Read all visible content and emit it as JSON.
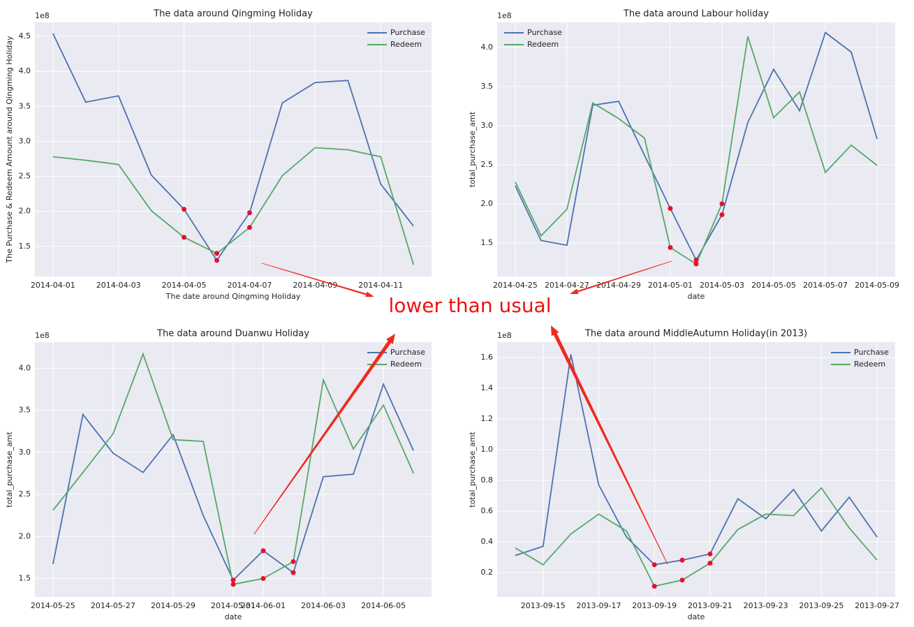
{
  "chart_data": [
    {
      "type": "line",
      "title": "The data around Qingming Holiday",
      "x_label": "The date around Qingming Holiday",
      "y_label": "The Purchase & Redeem Amount around Qingming Holiday",
      "offset": "1e8",
      "x": [
        "2014-04-01",
        "2014-04-02",
        "2014-04-03",
        "2014-04-04",
        "2014-04-05",
        "2014-04-06",
        "2014-04-07",
        "2014-04-08",
        "2014-04-09",
        "2014-04-10",
        "2014-04-11",
        "2014-04-12"
      ],
      "series": [
        {
          "name": "Purchase",
          "color": "#4c72b0",
          "values": [
            4.54,
            3.56,
            3.65,
            2.52,
            2.03,
            1.3,
            1.98,
            3.55,
            3.84,
            3.87,
            2.39,
            1.79
          ]
        },
        {
          "name": "Redeem",
          "color": "#55a868",
          "values": [
            2.78,
            2.73,
            2.67,
            2.01,
            1.63,
            1.4,
            1.77,
            2.51,
            2.91,
            2.88,
            2.78,
            1.24
          ]
        }
      ],
      "highlight": [
        "2014-04-05",
        "2014-04-06",
        "2014-04-07"
      ],
      "highlight_color": "#e8112d",
      "ylim": [
        1.07,
        4.7
      ],
      "yticks": [
        1.5,
        {
          "value": 2,
          "label": "2.0"
        },
        2.5,
        {
          "value": 3,
          "label": "3.0"
        },
        3.5,
        {
          "value": 4,
          "label": "4.0"
        },
        4.5
      ],
      "xticks": [
        "2014-04-01",
        "2014-04-03",
        "2014-04-05",
        "2014-04-07",
        "2014-04-09",
        "2014-04-11"
      ],
      "grid": true,
      "legend": "upper right"
    },
    {
      "type": "line",
      "title": "The data around Labour holiday",
      "x_label": "date",
      "y_label": "total_purchase_amt",
      "offset": "1e8",
      "x": [
        "2014-04-25",
        "2014-04-26",
        "2014-04-27",
        "2014-04-28",
        "2014-04-29",
        "2014-04-30",
        "2014-05-01",
        "2014-05-02",
        "2014-05-03",
        "2014-05-04",
        "2014-05-05",
        "2014-05-06",
        "2014-05-07",
        "2014-05-08",
        "2014-05-09"
      ],
      "series": [
        {
          "name": "Purchase",
          "color": "#4c72b0",
          "values": [
            2.23,
            1.53,
            1.47,
            3.26,
            3.31,
            2.62,
            1.94,
            1.28,
            1.86,
            3.04,
            3.72,
            3.19,
            4.19,
            3.94,
            2.83
          ]
        },
        {
          "name": "Redeem",
          "color": "#55a868",
          "values": [
            2.28,
            1.59,
            1.93,
            3.29,
            3.09,
            2.84,
            1.44,
            1.23,
            2.0,
            4.14,
            3.1,
            3.43,
            2.4,
            2.75,
            2.49
          ]
        }
      ],
      "highlight": [
        "2014-05-01",
        "2014-05-02",
        "2014-05-03"
      ],
      "highlight_color": "#e8112d",
      "ylim": [
        1.07,
        4.32
      ],
      "yticks": [
        1.5,
        {
          "value": 2,
          "label": "2.0"
        },
        2.5,
        {
          "value": 3,
          "label": "3.0"
        },
        3.5,
        {
          "value": 4,
          "label": "4.0"
        }
      ],
      "xticks": [
        "2014-04-25",
        "2014-04-27",
        "2014-04-29",
        "2014-05-01",
        "2014-05-03",
        "2014-05-05",
        "2014-05-07",
        "2014-05-09"
      ],
      "grid": true,
      "legend": "upper left"
    },
    {
      "type": "line",
      "title": "The data around Duanwu Holiday",
      "x_label": "date",
      "y_label": "total_purchase_amt",
      "offset": "1e8",
      "x": [
        "2014-05-25",
        "2014-05-26",
        "2014-05-27",
        "2014-05-28",
        "2014-05-29",
        "2014-05-30",
        "2014-05-31",
        "2014-06-01",
        "2014-06-02",
        "2014-06-03",
        "2014-06-04",
        "2014-06-05",
        "2014-06-06"
      ],
      "series": [
        {
          "name": "Purchase",
          "color": "#4c72b0",
          "values": [
            1.67,
            3.45,
            2.99,
            2.76,
            3.21,
            2.25,
            1.48,
            1.83,
            1.57,
            2.71,
            2.74,
            3.81,
            3.02
          ]
        },
        {
          "name": "Redeem",
          "color": "#55a868",
          "values": [
            2.31,
            2.76,
            3.22,
            4.17,
            3.15,
            3.13,
            1.43,
            1.5,
            1.7,
            3.86,
            3.04,
            3.56,
            2.75
          ]
        }
      ],
      "highlight": [
        "2014-05-31",
        "2014-06-01",
        "2014-06-02"
      ],
      "highlight_color": "#e8112d",
      "ylim": [
        1.28,
        4.31
      ],
      "yticks": [
        1.5,
        {
          "value": 2,
          "label": "2.0"
        },
        2.5,
        {
          "value": 3,
          "label": "3.0"
        },
        3.5,
        {
          "value": 4,
          "label": "4.0"
        }
      ],
      "xticks": [
        "2014-05-25",
        "2014-05-27",
        "2014-05-29",
        "2014-05-31",
        "2014-06-01",
        "2014-06-03",
        "2014-06-05"
      ],
      "grid": true,
      "legend": "upper right"
    },
    {
      "type": "line",
      "title": "The data around MiddleAutumn Holiday(in 2013)",
      "x_label": "date",
      "y_label": "total_purchase_amt",
      "offset": "1e8",
      "x": [
        "2013-09-14",
        "2013-09-15",
        "2013-09-16",
        "2013-09-17",
        "2013-09-18",
        "2013-09-19",
        "2013-09-20",
        "2013-09-21",
        "2013-09-22",
        "2013-09-23",
        "2013-09-24",
        "2013-09-25",
        "2013-09-26",
        "2013-09-27"
      ],
      "series": [
        {
          "name": "Purchase",
          "color": "#4c72b0",
          "values": [
            0.31,
            0.37,
            1.62,
            0.77,
            0.43,
            0.25,
            0.28,
            0.32,
            0.68,
            0.55,
            0.74,
            0.47,
            0.69,
            0.43
          ]
        },
        {
          "name": "Redeem",
          "color": "#55a868",
          "values": [
            0.36,
            0.25,
            0.45,
            0.58,
            0.47,
            0.11,
            0.15,
            0.26,
            0.48,
            0.58,
            0.57,
            0.75,
            0.49,
            0.28
          ]
        }
      ],
      "highlight": [
        "2013-09-19",
        "2013-09-20",
        "2013-09-21"
      ],
      "highlight_color": "#e8112d",
      "ylim": [
        0.04,
        1.7
      ],
      "yticks": [
        0.2,
        0.4,
        0.6,
        0.8,
        {
          "value": 1,
          "label": "1.0"
        },
        1.2,
        1.4,
        1.6
      ],
      "xticks": [
        "2013-09-15",
        "2013-09-17",
        "2013-09-19",
        "2013-09-21",
        "2013-09-23",
        "2013-09-25",
        "2013-09-27"
      ],
      "grid": true,
      "legend": "upper right"
    }
  ],
  "annotation": "lower than usual"
}
